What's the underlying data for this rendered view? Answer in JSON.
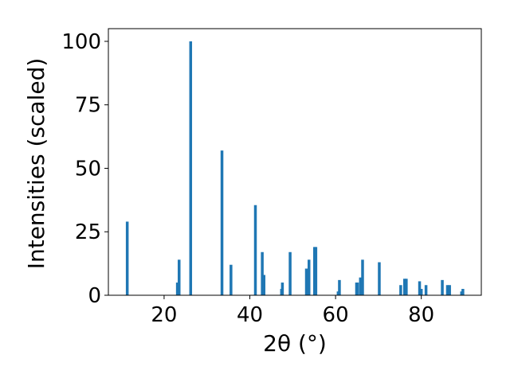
{
  "chart_data": {
    "type": "bar",
    "xlabel": "2θ (°)",
    "ylabel": "Intensities (scaled)",
    "xlim": [
      7,
      94
    ],
    "ylim": [
      0,
      105
    ],
    "xticks": [
      20,
      40,
      60,
      80
    ],
    "yticks": [
      0,
      25,
      50,
      75,
      100
    ],
    "grid": false,
    "bar_color": "#1f77b4",
    "x": [
      11.4,
      23.1,
      23.5,
      26.2,
      33.5,
      35.6,
      41.3,
      42.9,
      43.3,
      47.4,
      47.6,
      49.4,
      53.2,
      53.8,
      55.1,
      55.4,
      60.6,
      60.9,
      64.9,
      65.1,
      65.8,
      66.3,
      70.2,
      75.2,
      76.1,
      76.5,
      79.6,
      80.0,
      81.1,
      84.9,
      86.1,
      86.6,
      89.4,
      89.7
    ],
    "values": [
      29,
      5,
      14,
      100,
      57,
      12,
      35.5,
      17,
      8,
      2.5,
      5,
      17,
      10.5,
      14,
      19,
      19,
      1.5,
      6,
      5,
      5,
      7,
      14,
      13,
      4,
      6.5,
      6.5,
      5.5,
      2.5,
      4,
      6,
      4,
      4,
      1.5,
      2.5
    ]
  }
}
